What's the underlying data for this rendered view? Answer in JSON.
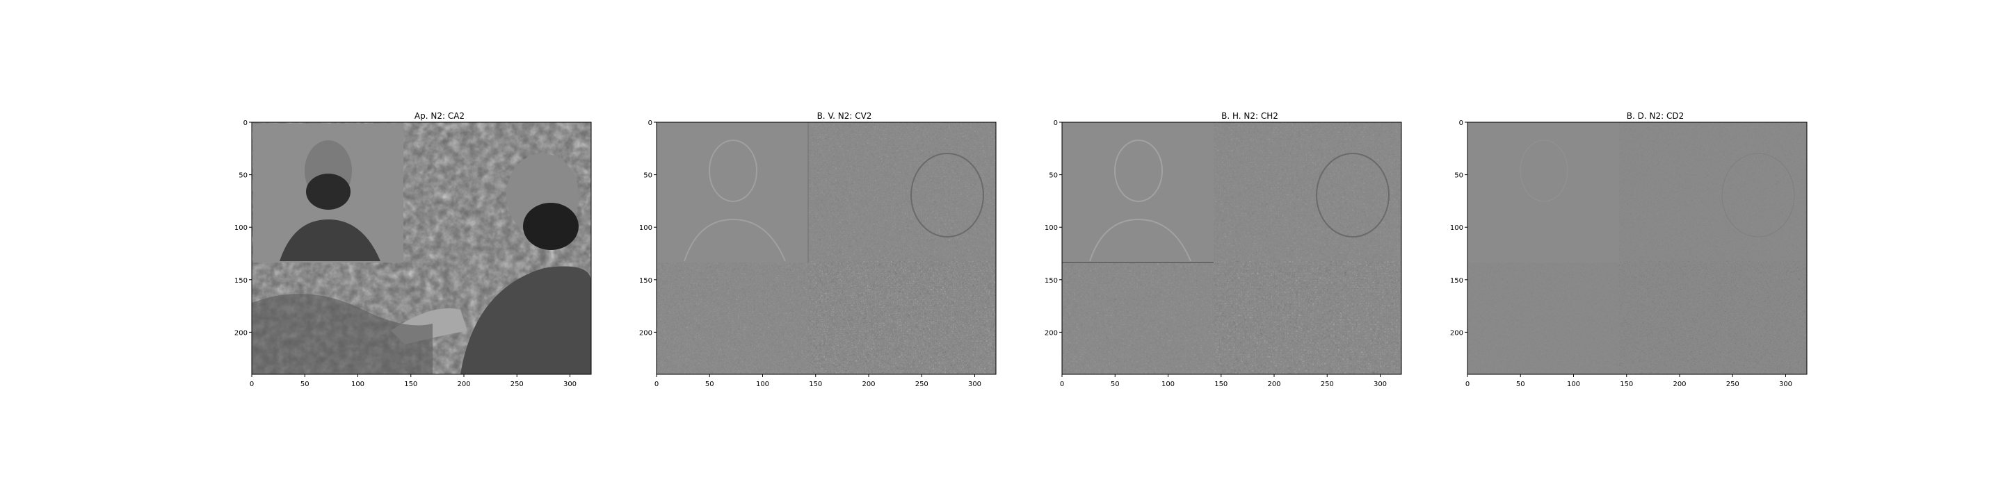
{
  "figure": {
    "background": "#ffffff",
    "panels": [
      {
        "title": "Ap. N2: CA2",
        "image": "grayscale approximation coefficients: man with beard (inset portrait) and selfie over rocky stream",
        "style": "approx",
        "x_ticks": [
          "0",
          "50",
          "100",
          "150",
          "200",
          "250",
          "300"
        ],
        "y_ticks": [
          "0",
          "50",
          "100",
          "150",
          "200"
        ]
      },
      {
        "title": "B. V. N2: CV2",
        "image": "vertical detail coefficients (edge map)",
        "style": "detail-vertical",
        "x_ticks": [
          "0",
          "50",
          "100",
          "150",
          "200",
          "250",
          "300"
        ],
        "y_ticks": [
          "0",
          "50",
          "100",
          "150",
          "200"
        ]
      },
      {
        "title": "B. H. N2: CH2",
        "image": "horizontal detail coefficients (edge map)",
        "style": "detail-horizontal",
        "x_ticks": [
          "0",
          "50",
          "100",
          "150",
          "200",
          "250",
          "300"
        ],
        "y_ticks": [
          "0",
          "50",
          "100",
          "150",
          "200"
        ]
      },
      {
        "title": "B. D. N2: CD2",
        "image": "diagonal detail coefficients (edge map)",
        "style": "detail-diagonal",
        "x_ticks": [
          "0",
          "50",
          "100",
          "150",
          "200",
          "250",
          "300"
        ],
        "y_ticks": [
          "0",
          "50",
          "100",
          "150",
          "200"
        ]
      }
    ],
    "axis": {
      "x_range": [
        0,
        320
      ],
      "y_range": [
        0,
        240
      ],
      "colors": {
        "axis": "#000000",
        "detail_gray": "#8a8a8a"
      }
    }
  }
}
